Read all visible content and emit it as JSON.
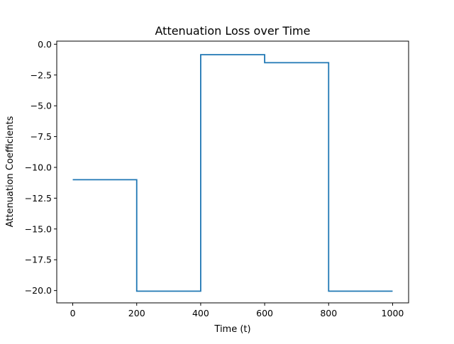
{
  "chart_data": {
    "type": "line",
    "title": "Attenuation Loss over Time",
    "xlabel": "Time (t)",
    "ylabel": "Attenuation Coefficients",
    "xlim": [
      -50,
      1050
    ],
    "ylim": [
      -21,
      0.25
    ],
    "x_ticks": [
      0,
      200,
      400,
      600,
      800,
      1000
    ],
    "x_tick_labels": [
      "0",
      "200",
      "400",
      "600",
      "800",
      "1000"
    ],
    "y_ticks": [
      0,
      -2.5,
      -5,
      -7.5,
      -10,
      -12.5,
      -15,
      -17.5,
      -20
    ],
    "y_tick_labels": [
      "0.0",
      "−2.5",
      "−5.0",
      "−7.5",
      "−10.0",
      "−12.5",
      "−15.0",
      "−17.5",
      "−20.0"
    ],
    "grid": false,
    "legend": "none",
    "series": [
      {
        "color": "#1f77b4",
        "step": "post",
        "x": [
          0,
          200,
          400,
          600,
          800,
          1000
        ],
        "y": [
          -11.0,
          -20.05,
          -0.85,
          -1.5,
          -20.05,
          -20.05
        ]
      }
    ]
  }
}
